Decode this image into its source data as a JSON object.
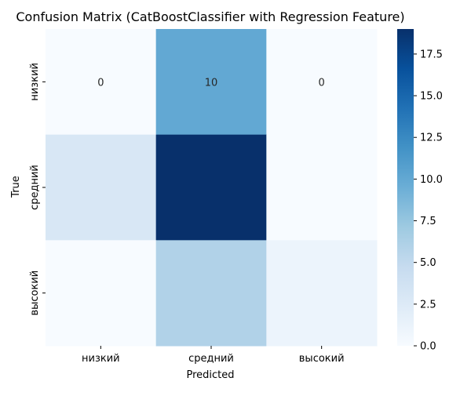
{
  "chart_data": {
    "type": "heatmap",
    "title": "Confusion Matrix (CatBoostClassifier with Regression Feature)",
    "xlabel": "Predicted",
    "ylabel": "True",
    "x_categories": [
      "низкий",
      "средний",
      "высокий"
    ],
    "y_categories": [
      "низкий",
      "средний",
      "высокий"
    ],
    "values": [
      [
        0,
        10,
        0
      ],
      [
        3,
        19,
        0
      ],
      [
        0,
        6,
        1
      ]
    ],
    "annotations": [
      [
        "0",
        "10",
        "0"
      ],
      [
        "",
        "",
        ""
      ],
      [
        "",
        "",
        ""
      ]
    ],
    "colorbar": {
      "min": 0,
      "max": 19,
      "ticks": [
        0.0,
        2.5,
        5.0,
        7.5,
        10.0,
        12.5,
        15.0,
        17.5
      ],
      "tick_labels": [
        "0.0",
        "2.5",
        "5.0",
        "7.5",
        "10.0",
        "12.5",
        "15.0",
        "17.5"
      ]
    },
    "colormap": "Blues",
    "colormap_stops": [
      "#f7fbff",
      "#deebf7",
      "#c6dbef",
      "#9ecae1",
      "#6baed6",
      "#4292c6",
      "#2171b5",
      "#08519c",
      "#08306b"
    ]
  }
}
